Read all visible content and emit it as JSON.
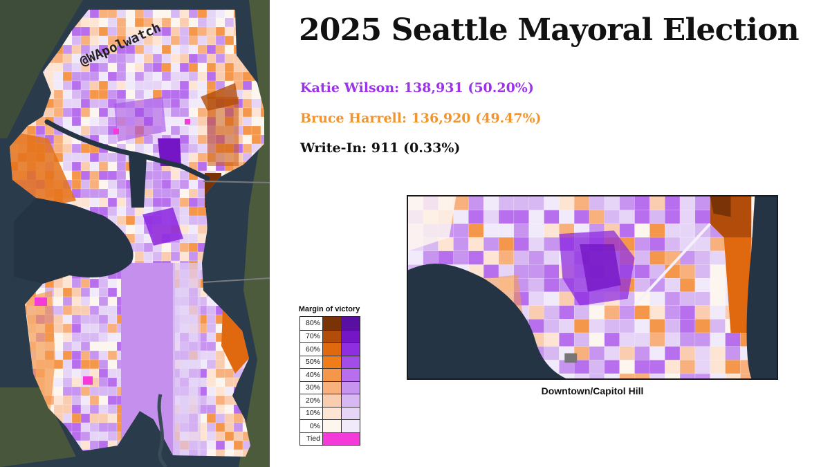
{
  "title": "2025 Seattle Mayoral Election",
  "results": [
    {
      "label": "Katie Wilson: 138,931 (50.20%)",
      "color": "#9b33e8"
    },
    {
      "label": "Bruce Harrell: 136,920 (49.47%)",
      "color": "#f0952f"
    },
    {
      "label": "Write-In: 911 (0.33%)",
      "color": "#111111"
    }
  ],
  "watermark": "@WApolwatch",
  "inset_caption": "Downtown/Capitol Hill",
  "legend": {
    "title": "Margin of victory",
    "rows": [
      {
        "label": "80%",
        "harrell": "#7a3306",
        "wilson": "#5a0fa3"
      },
      {
        "label": "70%",
        "harrell": "#b24c0a",
        "wilson": "#7416c6"
      },
      {
        "label": "60%",
        "harrell": "#e0680f",
        "wilson": "#8f2ee0"
      },
      {
        "label": "50%",
        "harrell": "#f07d1a",
        "wilson": "#a34de8"
      },
      {
        "label": "40%",
        "harrell": "#f5974a",
        "wilson": "#b86fee"
      },
      {
        "label": "30%",
        "harrell": "#f8b07d",
        "wilson": "#c795f0"
      },
      {
        "label": "20%",
        "harrell": "#fbcdb0",
        "wilson": "#d8b8f3"
      },
      {
        "label": "10%",
        "harrell": "#fde4d3",
        "wilson": "#e6d5f7"
      },
      {
        "label": "0%",
        "harrell": "#fdf6ef",
        "wilson": "#f1eafb"
      }
    ],
    "tied": {
      "label": "Tied",
      "color": "#f43ad8"
    }
  },
  "colors": {
    "water": "#243445",
    "land": "#4b5a3a"
  }
}
